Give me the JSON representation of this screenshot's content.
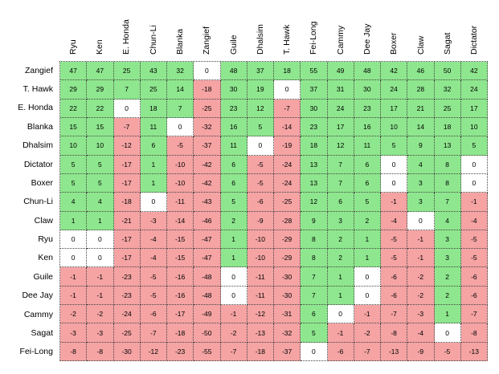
{
  "columns": [
    "Ryu",
    "Ken",
    "E. Honda",
    "Chun-Li",
    "Blanka",
    "Zangief",
    "Guile",
    "Dhalsim",
    "T. Hawk",
    "Fei-Long",
    "Cammy",
    "Dee Jay",
    "Boxer",
    "Claw",
    "Sagat",
    "Dictator"
  ],
  "rows": [
    {
      "name": "Zangief",
      "values": [
        47,
        47,
        25,
        43,
        32,
        0,
        48,
        37,
        18,
        55,
        49,
        48,
        42,
        46,
        50,
        42
      ]
    },
    {
      "name": "T. Hawk",
      "values": [
        29,
        29,
        7,
        25,
        14,
        -18,
        30,
        19,
        0,
        37,
        31,
        30,
        24,
        28,
        32,
        24
      ]
    },
    {
      "name": "E. Honda",
      "values": [
        22,
        22,
        0,
        18,
        7,
        -25,
        23,
        12,
        -7,
        30,
        24,
        23,
        17,
        21,
        25,
        17
      ]
    },
    {
      "name": "Blanka",
      "values": [
        15,
        15,
        -7,
        11,
        0,
        -32,
        16,
        5,
        -14,
        23,
        17,
        16,
        10,
        14,
        18,
        10
      ]
    },
    {
      "name": "Dhalsim",
      "values": [
        10,
        10,
        -12,
        6,
        -5,
        -37,
        11,
        0,
        -19,
        18,
        12,
        11,
        5,
        9,
        13,
        5
      ]
    },
    {
      "name": "Dictator",
      "values": [
        5,
        5,
        -17,
        1,
        -10,
        -42,
        6,
        -5,
        -24,
        13,
        7,
        6,
        0,
        4,
        8,
        0
      ]
    },
    {
      "name": "Boxer",
      "values": [
        5,
        5,
        -17,
        1,
        -10,
        -42,
        6,
        -5,
        -24,
        13,
        7,
        6,
        0,
        3,
        8,
        0
      ]
    },
    {
      "name": "Chun-Li",
      "values": [
        4,
        4,
        -18,
        0,
        -11,
        -43,
        5,
        -6,
        -25,
        12,
        6,
        5,
        -1,
        3,
        7,
        -1
      ]
    },
    {
      "name": "Claw",
      "values": [
        1,
        1,
        -21,
        -3,
        -14,
        -46,
        2,
        -9,
        -28,
        9,
        3,
        2,
        -4,
        0,
        4,
        -4
      ]
    },
    {
      "name": "Ryu",
      "values": [
        0,
        0,
        -17,
        -4,
        -15,
        -47,
        1,
        -10,
        -29,
        8,
        2,
        1,
        -5,
        -1,
        3,
        -5
      ]
    },
    {
      "name": "Ken",
      "values": [
        0,
        0,
        -17,
        -4,
        -15,
        -47,
        1,
        -10,
        -29,
        8,
        2,
        1,
        -5,
        -1,
        3,
        -5
      ]
    },
    {
      "name": "Guile",
      "values": [
        -1,
        -1,
        -23,
        -5,
        -16,
        -48,
        0,
        -11,
        -30,
        7,
        1,
        0,
        -6,
        -2,
        2,
        -6
      ]
    },
    {
      "name": "Dee Jay",
      "values": [
        -1,
        -1,
        -23,
        -5,
        -16,
        -48,
        0,
        -11,
        -30,
        7,
        1,
        0,
        -6,
        -2,
        2,
        -6
      ]
    },
    {
      "name": "Cammy",
      "values": [
        -2,
        -2,
        -24,
        -6,
        -17,
        -49,
        -1,
        -12,
        -31,
        6,
        0,
        -1,
        -7,
        -3,
        1,
        -7
      ]
    },
    {
      "name": "Sagat",
      "values": [
        -3,
        -3,
        -25,
        -7,
        -18,
        -50,
        -2,
        -13,
        -32,
        5,
        -1,
        -2,
        -8,
        -4,
        0,
        -8
      ]
    },
    {
      "name": "Fei-Long",
      "values": [
        -8,
        -8,
        -30,
        -12,
        -23,
        -55,
        -7,
        -18,
        -37,
        0,
        -6,
        -7,
        -13,
        -9,
        -5,
        -13
      ]
    }
  ],
  "colors": {
    "positive": "#8ee78e",
    "negative": "#f5a3a3",
    "zero": "#ffffff"
  }
}
